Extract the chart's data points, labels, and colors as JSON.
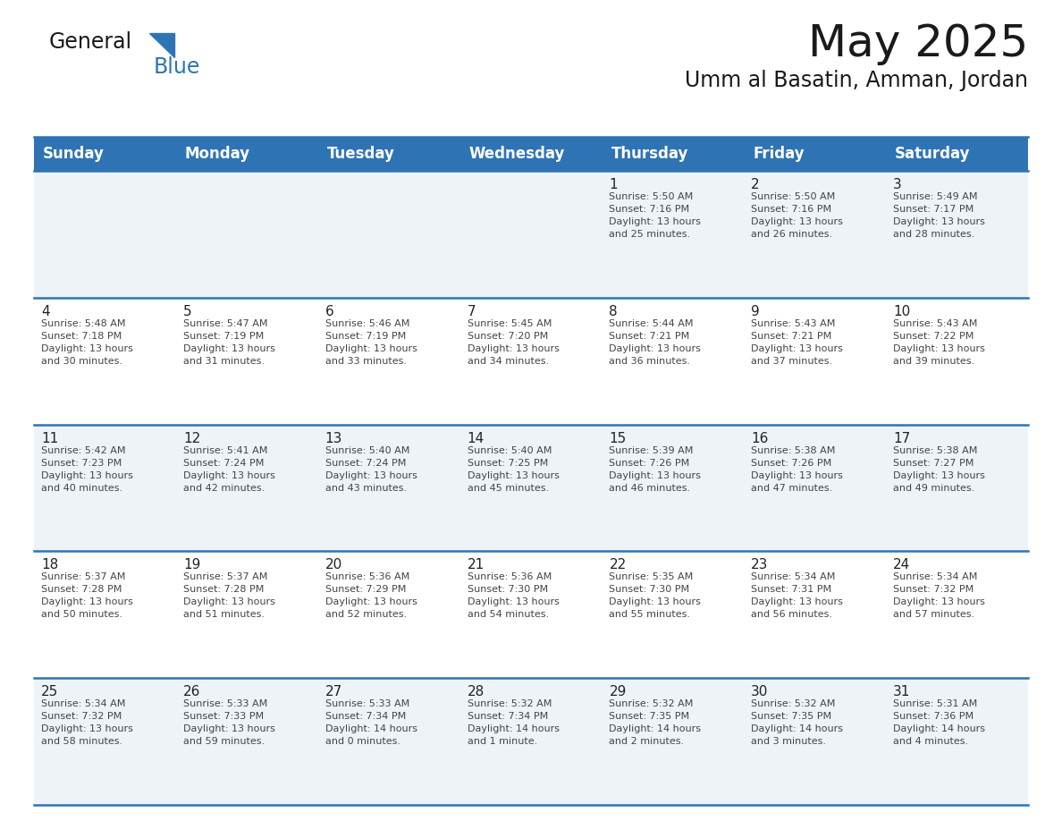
{
  "title": "May 2025",
  "subtitle": "Umm al Basatin, Amman, Jordan",
  "days_of_week": [
    "Sunday",
    "Monday",
    "Tuesday",
    "Wednesday",
    "Thursday",
    "Friday",
    "Saturday"
  ],
  "header_bg": "#2E74B5",
  "header_text": "#FFFFFF",
  "row1_bg": "#EEF3F8",
  "row2_bg": "#FFFFFF",
  "cell_text_color": "#444444",
  "day_number_color": "#222222",
  "title_color": "#1A1A1A",
  "subtitle_color": "#1A1A1A",
  "line_color": "#2E74B5",
  "logo_general_color": "#1A1A1A",
  "logo_blue_color": "#2E74B5",
  "logo_triangle_color": "#2E74B5",
  "calendar_data": [
    [
      {
        "day": null,
        "info": null
      },
      {
        "day": null,
        "info": null
      },
      {
        "day": null,
        "info": null
      },
      {
        "day": null,
        "info": null
      },
      {
        "day": "1",
        "info": "Sunrise: 5:50 AM\nSunset: 7:16 PM\nDaylight: 13 hours\nand 25 minutes."
      },
      {
        "day": "2",
        "info": "Sunrise: 5:50 AM\nSunset: 7:16 PM\nDaylight: 13 hours\nand 26 minutes."
      },
      {
        "day": "3",
        "info": "Sunrise: 5:49 AM\nSunset: 7:17 PM\nDaylight: 13 hours\nand 28 minutes."
      }
    ],
    [
      {
        "day": "4",
        "info": "Sunrise: 5:48 AM\nSunset: 7:18 PM\nDaylight: 13 hours\nand 30 minutes."
      },
      {
        "day": "5",
        "info": "Sunrise: 5:47 AM\nSunset: 7:19 PM\nDaylight: 13 hours\nand 31 minutes."
      },
      {
        "day": "6",
        "info": "Sunrise: 5:46 AM\nSunset: 7:19 PM\nDaylight: 13 hours\nand 33 minutes."
      },
      {
        "day": "7",
        "info": "Sunrise: 5:45 AM\nSunset: 7:20 PM\nDaylight: 13 hours\nand 34 minutes."
      },
      {
        "day": "8",
        "info": "Sunrise: 5:44 AM\nSunset: 7:21 PM\nDaylight: 13 hours\nand 36 minutes."
      },
      {
        "day": "9",
        "info": "Sunrise: 5:43 AM\nSunset: 7:21 PM\nDaylight: 13 hours\nand 37 minutes."
      },
      {
        "day": "10",
        "info": "Sunrise: 5:43 AM\nSunset: 7:22 PM\nDaylight: 13 hours\nand 39 minutes."
      }
    ],
    [
      {
        "day": "11",
        "info": "Sunrise: 5:42 AM\nSunset: 7:23 PM\nDaylight: 13 hours\nand 40 minutes."
      },
      {
        "day": "12",
        "info": "Sunrise: 5:41 AM\nSunset: 7:24 PM\nDaylight: 13 hours\nand 42 minutes."
      },
      {
        "day": "13",
        "info": "Sunrise: 5:40 AM\nSunset: 7:24 PM\nDaylight: 13 hours\nand 43 minutes."
      },
      {
        "day": "14",
        "info": "Sunrise: 5:40 AM\nSunset: 7:25 PM\nDaylight: 13 hours\nand 45 minutes."
      },
      {
        "day": "15",
        "info": "Sunrise: 5:39 AM\nSunset: 7:26 PM\nDaylight: 13 hours\nand 46 minutes."
      },
      {
        "day": "16",
        "info": "Sunrise: 5:38 AM\nSunset: 7:26 PM\nDaylight: 13 hours\nand 47 minutes."
      },
      {
        "day": "17",
        "info": "Sunrise: 5:38 AM\nSunset: 7:27 PM\nDaylight: 13 hours\nand 49 minutes."
      }
    ],
    [
      {
        "day": "18",
        "info": "Sunrise: 5:37 AM\nSunset: 7:28 PM\nDaylight: 13 hours\nand 50 minutes."
      },
      {
        "day": "19",
        "info": "Sunrise: 5:37 AM\nSunset: 7:28 PM\nDaylight: 13 hours\nand 51 minutes."
      },
      {
        "day": "20",
        "info": "Sunrise: 5:36 AM\nSunset: 7:29 PM\nDaylight: 13 hours\nand 52 minutes."
      },
      {
        "day": "21",
        "info": "Sunrise: 5:36 AM\nSunset: 7:30 PM\nDaylight: 13 hours\nand 54 minutes."
      },
      {
        "day": "22",
        "info": "Sunrise: 5:35 AM\nSunset: 7:30 PM\nDaylight: 13 hours\nand 55 minutes."
      },
      {
        "day": "23",
        "info": "Sunrise: 5:34 AM\nSunset: 7:31 PM\nDaylight: 13 hours\nand 56 minutes."
      },
      {
        "day": "24",
        "info": "Sunrise: 5:34 AM\nSunset: 7:32 PM\nDaylight: 13 hours\nand 57 minutes."
      }
    ],
    [
      {
        "day": "25",
        "info": "Sunrise: 5:34 AM\nSunset: 7:32 PM\nDaylight: 13 hours\nand 58 minutes."
      },
      {
        "day": "26",
        "info": "Sunrise: 5:33 AM\nSunset: 7:33 PM\nDaylight: 13 hours\nand 59 minutes."
      },
      {
        "day": "27",
        "info": "Sunrise: 5:33 AM\nSunset: 7:34 PM\nDaylight: 14 hours\nand 0 minutes."
      },
      {
        "day": "28",
        "info": "Sunrise: 5:32 AM\nSunset: 7:34 PM\nDaylight: 14 hours\nand 1 minute."
      },
      {
        "day": "29",
        "info": "Sunrise: 5:32 AM\nSunset: 7:35 PM\nDaylight: 14 hours\nand 2 minutes."
      },
      {
        "day": "30",
        "info": "Sunrise: 5:32 AM\nSunset: 7:35 PM\nDaylight: 14 hours\nand 3 minutes."
      },
      {
        "day": "31",
        "info": "Sunrise: 5:31 AM\nSunset: 7:36 PM\nDaylight: 14 hours\nand 4 minutes."
      }
    ]
  ]
}
